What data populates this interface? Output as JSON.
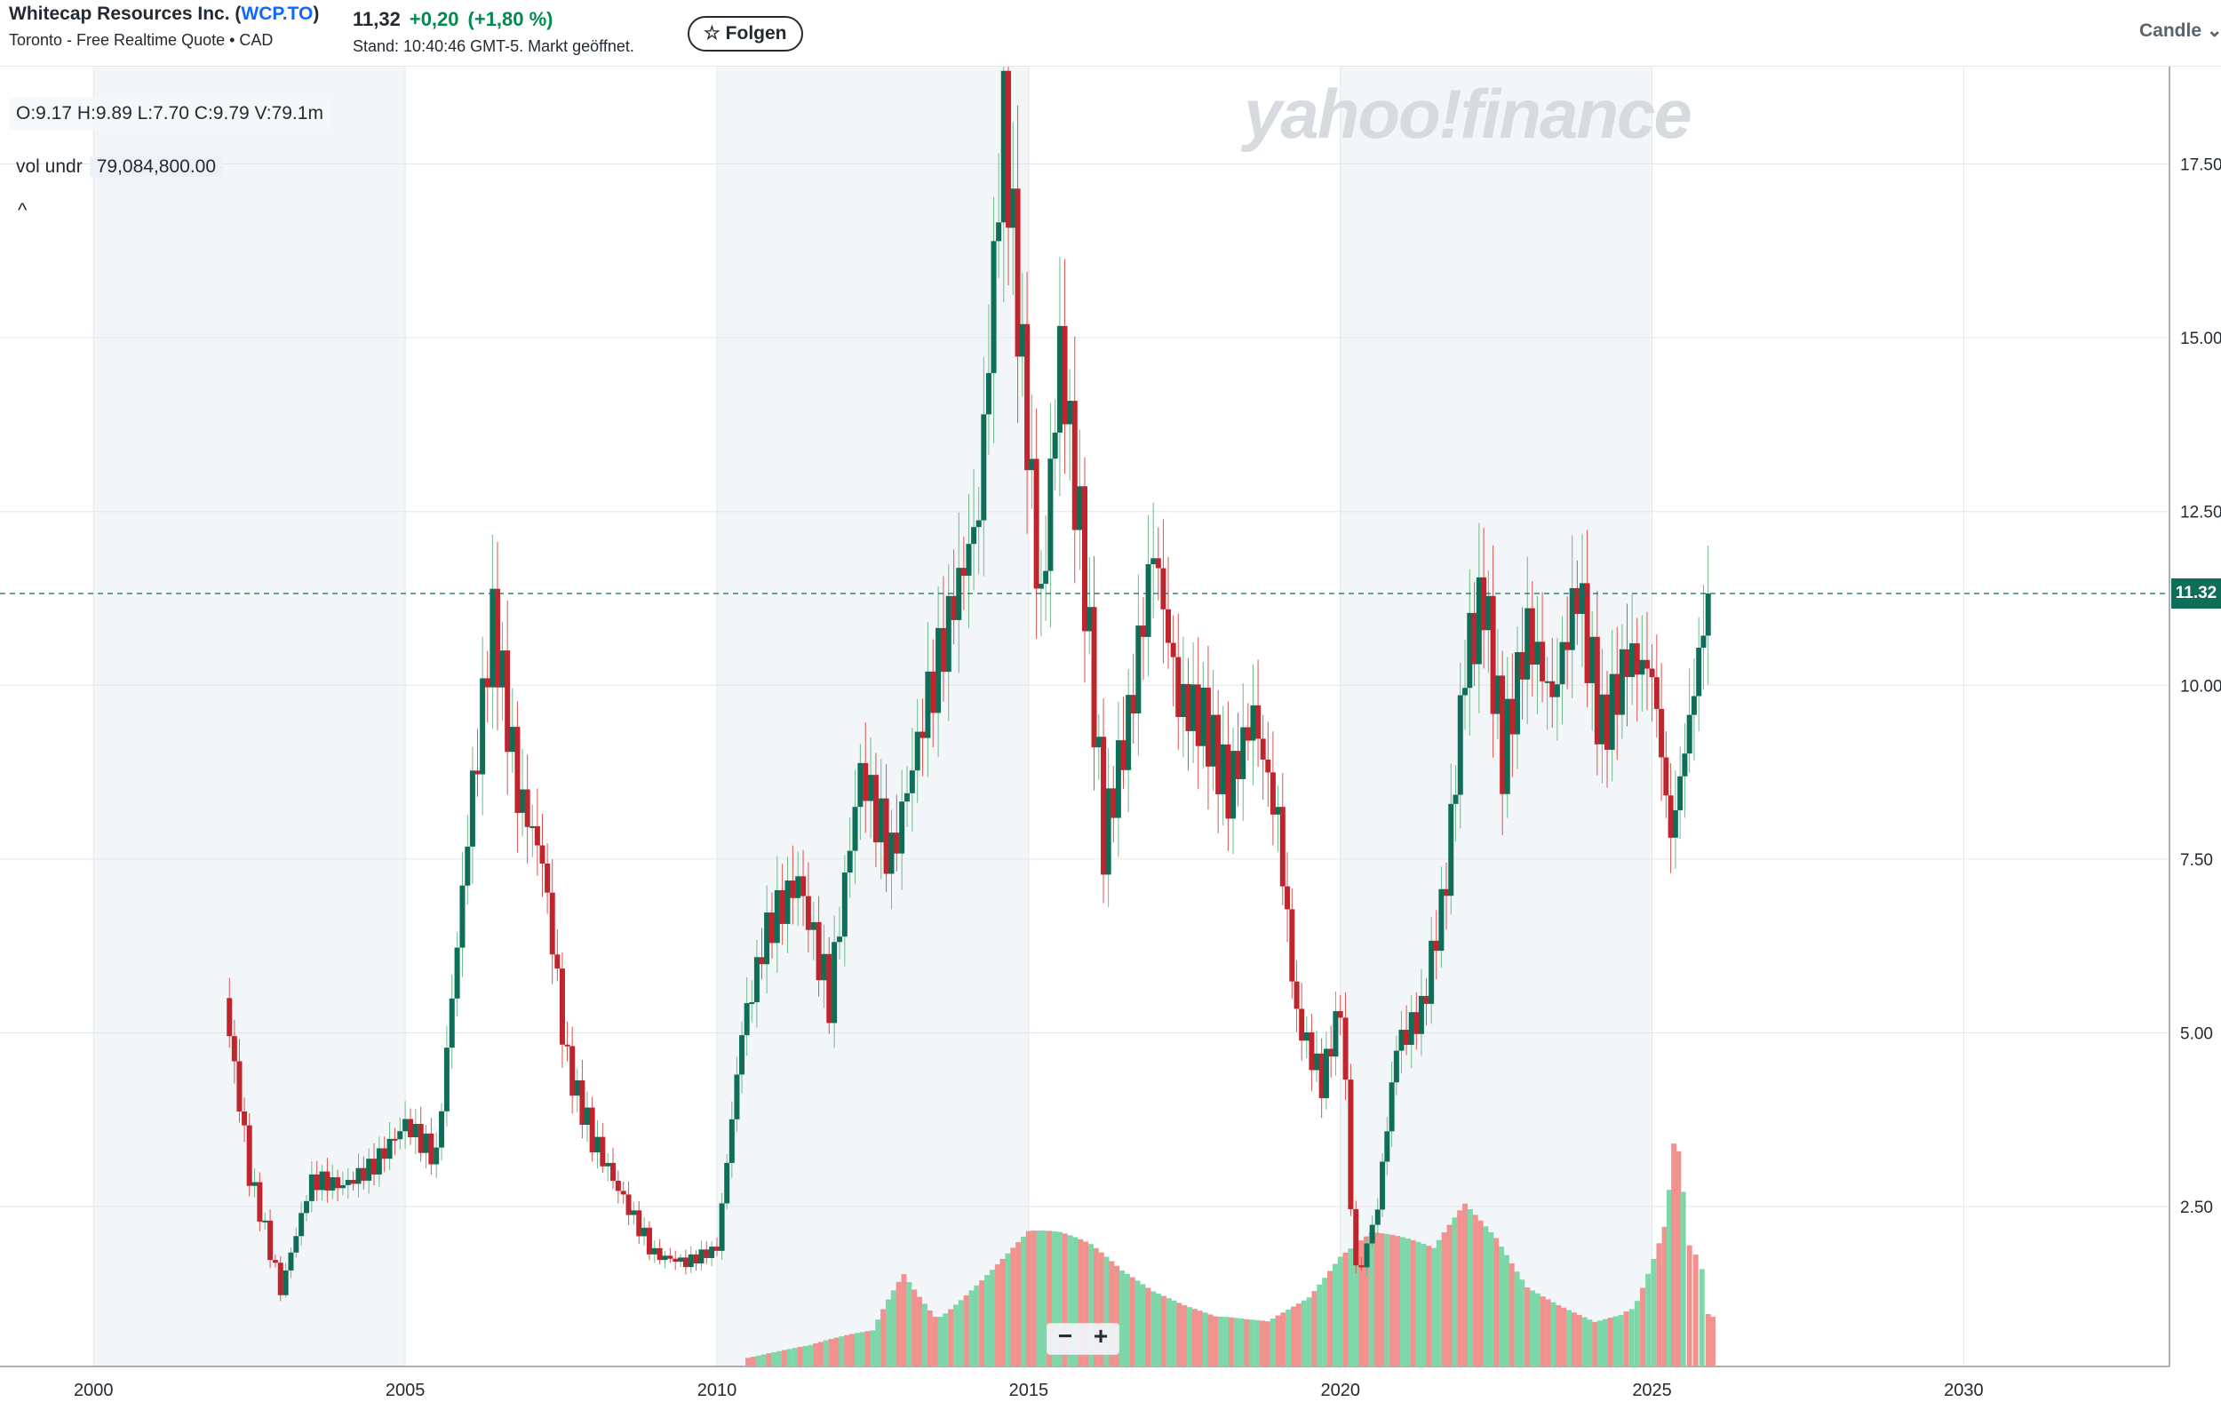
{
  "header": {
    "company": "Whitecap Resources Inc. (",
    "symbol": "WCP.TO",
    "close_paren": ")",
    "exchange_line": "Toronto - Free Realtime Quote • CAD",
    "price": "11,32",
    "change": "+0,20",
    "change_pct": "(+1,80 %)",
    "stand": "Stand: 10:40:46 GMT-5. Markt geöffnet.",
    "follow_label": "☆ Folgen",
    "chart_type_label": "Candle ⌄"
  },
  "overlay": {
    "ohlc": "O:9.17  H:9.89  L:7.70  C:9.79  V:79.1m",
    "vol_label": "vol undr",
    "vol_value": "79,084,800.00",
    "collapse": "^",
    "watermark": "yahoo!finance",
    "current_price_tag": "11.32",
    "zoom_out": "−",
    "zoom_in": "+"
  },
  "colors": {
    "up": "#0e6e57",
    "down": "#c0242c",
    "vol_up": "#7ed7a8",
    "vol_down": "#f2928f",
    "grid": "#e3e6ea",
    "shade": "#f3f6f9"
  },
  "chart_data": {
    "type": "candlestick",
    "title": "",
    "x_ticks": [
      "2000",
      "2005",
      "2010",
      "2015",
      "2020",
      "2025",
      "2030"
    ],
    "y_ticks": [
      "2.50",
      "5.00",
      "7.50",
      "10.00",
      "12.50",
      "15.00",
      "17.50"
    ],
    "ylim": [
      0.2,
      18.9
    ],
    "xlim": [
      1998.5,
      2033.3
    ],
    "grid": true,
    "current_price": 11.32,
    "close_series": [
      {
        "t": 2002.1,
        "c": 5.5
      },
      {
        "t": 2002.5,
        "c": 3.0
      },
      {
        "t": 2003.0,
        "c": 1.3
      },
      {
        "t": 2003.5,
        "c": 2.9
      },
      {
        "t": 2004.0,
        "c": 2.8
      },
      {
        "t": 2004.5,
        "c": 3.1
      },
      {
        "t": 2005.0,
        "c": 3.7
      },
      {
        "t": 2005.5,
        "c": 3.2
      },
      {
        "t": 2006.0,
        "c": 7.8
      },
      {
        "t": 2006.4,
        "c": 11.0
      },
      {
        "t": 2006.8,
        "c": 8.5
      },
      {
        "t": 2007.2,
        "c": 7.5
      },
      {
        "t": 2007.6,
        "c": 4.5
      },
      {
        "t": 2008.0,
        "c": 3.5
      },
      {
        "t": 2008.5,
        "c": 2.6
      },
      {
        "t": 2009.0,
        "c": 1.8
      },
      {
        "t": 2009.5,
        "c": 1.7
      },
      {
        "t": 2010.0,
        "c": 1.9
      },
      {
        "t": 2010.4,
        "c": 5.0
      },
      {
        "t": 2010.8,
        "c": 6.5
      },
      {
        "t": 2011.3,
        "c": 7.2
      },
      {
        "t": 2011.8,
        "c": 5.5
      },
      {
        "t": 2012.3,
        "c": 8.8
      },
      {
        "t": 2012.8,
        "c": 7.5
      },
      {
        "t": 2013.3,
        "c": 9.5
      },
      {
        "t": 2013.8,
        "c": 11.2
      },
      {
        "t": 2014.2,
        "c": 12.5
      },
      {
        "t": 2014.6,
        "c": 18.3
      },
      {
        "t": 2014.9,
        "c": 14.5
      },
      {
        "t": 2015.2,
        "c": 11.0
      },
      {
        "t": 2015.5,
        "c": 14.9
      },
      {
        "t": 2015.9,
        "c": 11.5
      },
      {
        "t": 2016.2,
        "c": 7.8
      },
      {
        "t": 2016.6,
        "c": 9.5
      },
      {
        "t": 2017.0,
        "c": 12.0
      },
      {
        "t": 2017.4,
        "c": 9.8
      },
      {
        "t": 2017.8,
        "c": 9.5
      },
      {
        "t": 2018.2,
        "c": 8.5
      },
      {
        "t": 2018.6,
        "c": 9.6
      },
      {
        "t": 2019.0,
        "c": 8.0
      },
      {
        "t": 2019.3,
        "c": 5.2
      },
      {
        "t": 2019.7,
        "c": 4.3
      },
      {
        "t": 2020.0,
        "c": 5.4
      },
      {
        "t": 2020.25,
        "c": 1.4
      },
      {
        "t": 2020.6,
        "c": 2.5
      },
      {
        "t": 2020.9,
        "c": 4.8
      },
      {
        "t": 2021.3,
        "c": 5.3
      },
      {
        "t": 2021.7,
        "c": 7.2
      },
      {
        "t": 2022.0,
        "c": 10.3
      },
      {
        "t": 2022.3,
        "c": 11.3
      },
      {
        "t": 2022.6,
        "c": 9.0
      },
      {
        "t": 2023.0,
        "c": 10.8
      },
      {
        "t": 2023.4,
        "c": 9.8
      },
      {
        "t": 2023.8,
        "c": 11.4
      },
      {
        "t": 2024.2,
        "c": 9.3
      },
      {
        "t": 2024.6,
        "c": 10.4
      },
      {
        "t": 2025.0,
        "c": 10.2
      },
      {
        "t": 2025.3,
        "c": 7.8
      },
      {
        "t": 2025.6,
        "c": 9.5
      },
      {
        "t": 2025.9,
        "c": 11.32
      }
    ],
    "volume_series": [
      {
        "t": 2010.5,
        "v": 0.02
      },
      {
        "t": 2011.5,
        "v": 0.05
      },
      {
        "t": 2012.5,
        "v": 0.1
      },
      {
        "t": 2013.0,
        "v": 0.3
      },
      {
        "t": 2013.5,
        "v": 0.2
      },
      {
        "t": 2014.0,
        "v": 0.25
      },
      {
        "t": 2014.5,
        "v": 0.3
      },
      {
        "t": 2015.0,
        "v": 0.35
      },
      {
        "t": 2015.5,
        "v": 0.32
      },
      {
        "t": 2016.0,
        "v": 0.28
      },
      {
        "t": 2016.5,
        "v": 0.22
      },
      {
        "t": 2017.0,
        "v": 0.18
      },
      {
        "t": 2017.5,
        "v": 0.16
      },
      {
        "t": 2018.0,
        "v": 0.15
      },
      {
        "t": 2018.5,
        "v": 0.17
      },
      {
        "t": 2019.0,
        "v": 0.2
      },
      {
        "t": 2019.5,
        "v": 0.22
      },
      {
        "t": 2020.0,
        "v": 0.3
      },
      {
        "t": 2020.5,
        "v": 0.33
      },
      {
        "t": 2021.0,
        "v": 0.3
      },
      {
        "t": 2021.5,
        "v": 0.27
      },
      {
        "t": 2022.0,
        "v": 0.38
      },
      {
        "t": 2022.5,
        "v": 0.32
      },
      {
        "t": 2023.0,
        "v": 0.22
      },
      {
        "t": 2023.5,
        "v": 0.2
      },
      {
        "t": 2024.0,
        "v": 0.19
      },
      {
        "t": 2024.5,
        "v": 0.18
      },
      {
        "t": 2025.2,
        "v": 0.4
      },
      {
        "t": 2025.35,
        "v": 0.85
      },
      {
        "t": 2025.5,
        "v": 0.45
      },
      {
        "t": 2025.7,
        "v": 0.38
      },
      {
        "t": 2025.9,
        "v": 0.12
      }
    ]
  }
}
